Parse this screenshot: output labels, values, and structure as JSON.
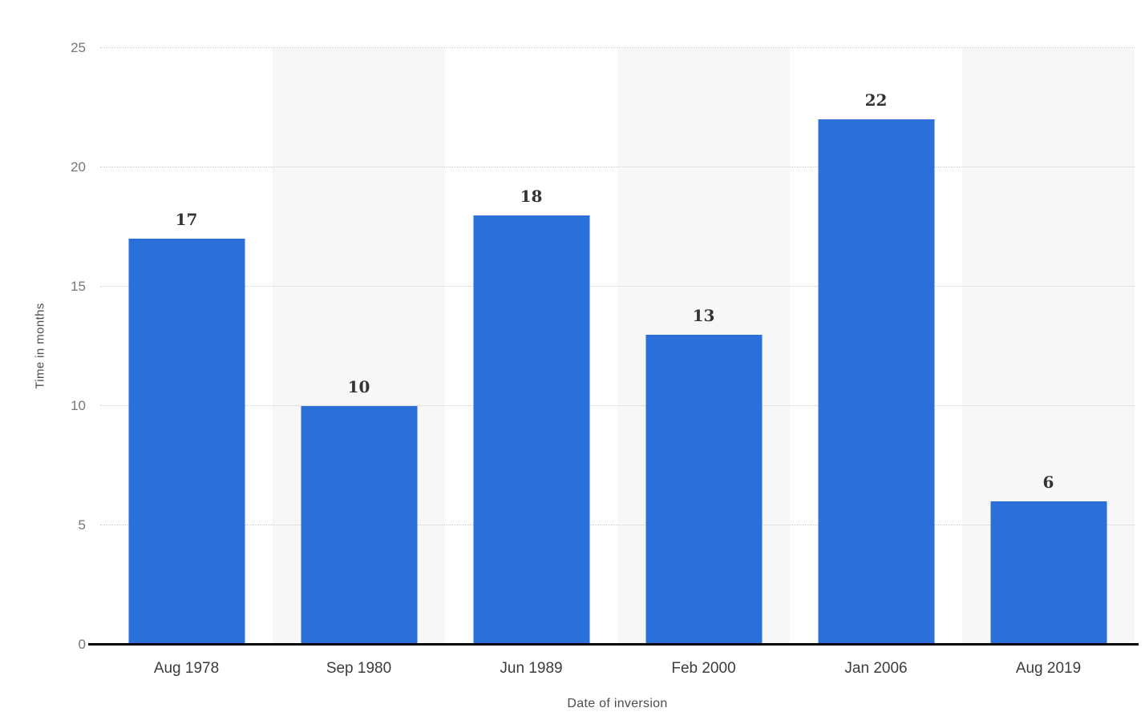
{
  "chart_data": {
    "type": "bar",
    "title": "",
    "categories": [
      "Aug 1978",
      "Sep 1980",
      "Jun 1989",
      "Feb 2000",
      "Jan 2006",
      "Aug 2019"
    ],
    "values": [
      17,
      10,
      18,
      13,
      22,
      6
    ],
    "xlabel": "Date of inversion",
    "ylabel": "Time in months",
    "ylim": [
      0,
      25
    ],
    "yticks": [
      0,
      5,
      10,
      15,
      20,
      25
    ],
    "legend": "none",
    "grid": "horizontal-dotted",
    "value_labels": true,
    "colors": {
      "bar": "#2b70d8",
      "band": "#f7f7f7",
      "gridline": "#cbcbcb",
      "axis_line": "#000000",
      "value_label": "#333333",
      "tick_label": "#767676",
      "category_label": "#3c3c3c",
      "axis_title": "#4d4d4d",
      "background": "#ffffff"
    }
  }
}
